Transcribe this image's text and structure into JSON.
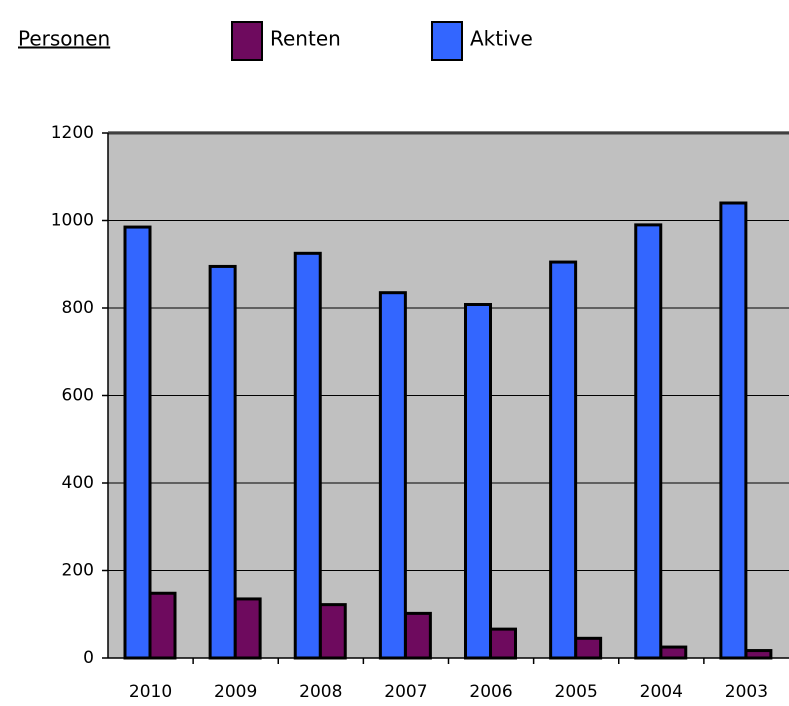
{
  "chart_data": {
    "type": "bar",
    "title": "Personen",
    "categories": [
      "2010",
      "2009",
      "2008",
      "2007",
      "2006",
      "2005",
      "2004",
      "2003"
    ],
    "series": [
      {
        "name": "Renten",
        "color": "#6e0a5e",
        "values": [
          148,
          135,
          122,
          102,
          66,
          45,
          25,
          17
        ]
      },
      {
        "name": "Aktive",
        "color": "#3366ff",
        "values": [
          985,
          895,
          925,
          835,
          808,
          905,
          990,
          1040
        ]
      }
    ],
    "ylim": [
      0,
      1200
    ],
    "yticks": [
      0,
      200,
      400,
      600,
      800,
      1000,
      1200
    ],
    "grid": true
  }
}
